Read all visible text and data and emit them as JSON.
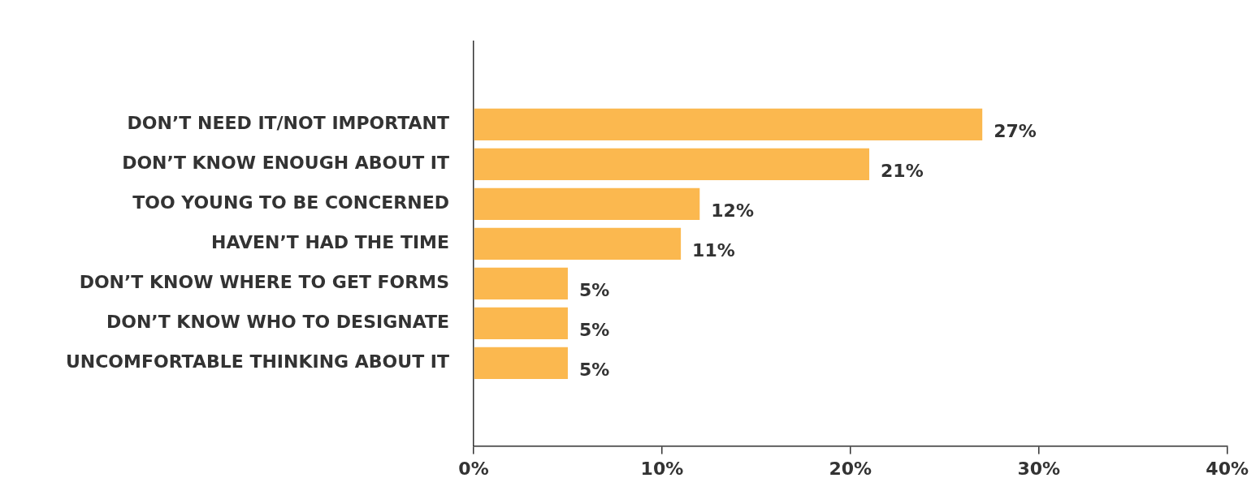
{
  "chart_data": {
    "type": "bar",
    "orientation": "horizontal",
    "categories": [
      "DON’T NEED IT/NOT IMPORTANT",
      "DON’T KNOW ENOUGH ABOUT IT",
      "TOO YOUNG TO BE CONCERNED",
      "HAVEN’T HAD THE TIME",
      "DON’T KNOW WHERE TO GET FORMS",
      "DON’T KNOW WHO TO DESIGNATE",
      "UNCOMFORTABLE THINKING ABOUT IT"
    ],
    "values": [
      27,
      21,
      12,
      11,
      5,
      5,
      5
    ],
    "value_labels": [
      "27%",
      "21%",
      "12%",
      "11%",
      "5%",
      "5%",
      "5%"
    ],
    "color": "#fbb84f",
    "xlim": [
      0,
      40
    ],
    "xticks": [
      {
        "value": 0,
        "label": "0%"
      },
      {
        "value": 10,
        "label": "10%"
      },
      {
        "value": 20,
        "label": "20%"
      },
      {
        "value": 30,
        "label": "30%"
      },
      {
        "value": 40,
        "label": "40%"
      }
    ],
    "grid": false,
    "legend": false
  }
}
